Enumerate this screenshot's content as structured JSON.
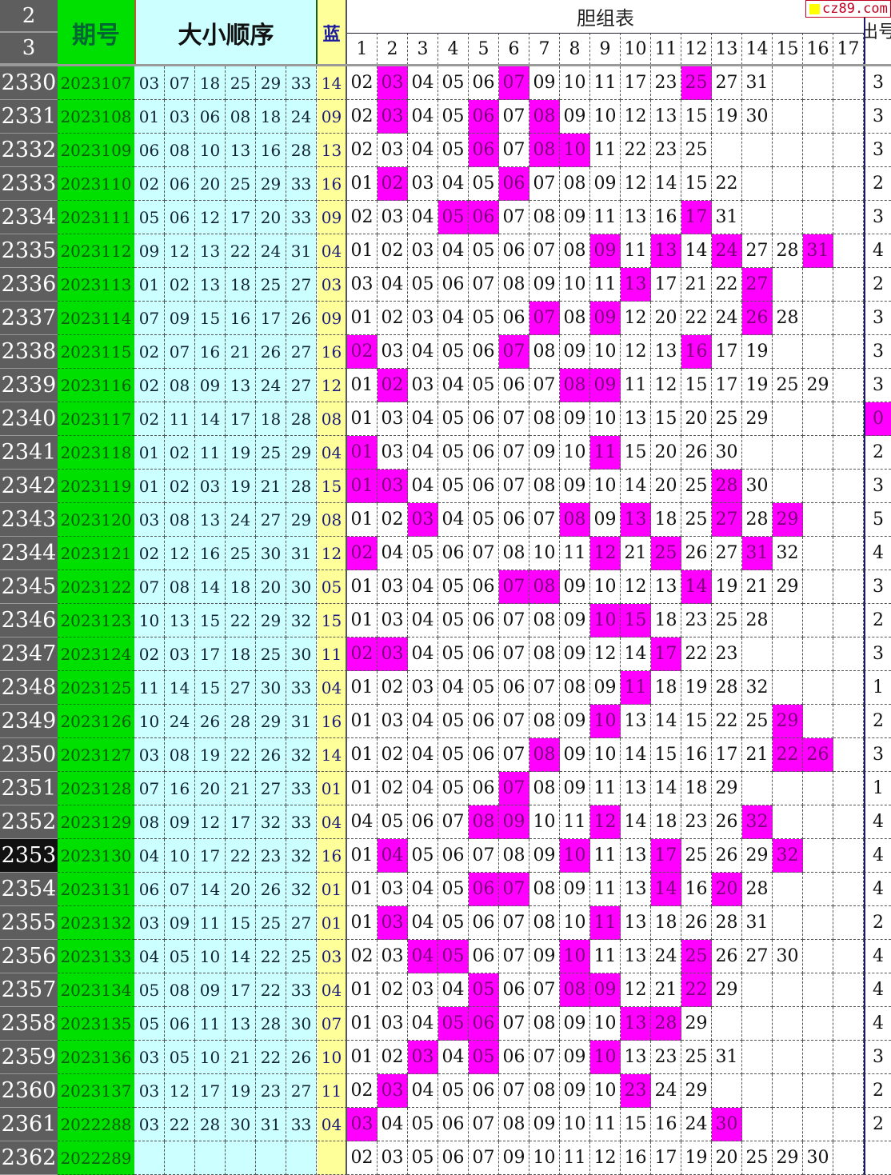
{
  "header": {
    "row_num_top": "2",
    "row_num_bottom": "3",
    "issue_label": "期号",
    "order_label": "大小顺序",
    "blue_label": "蓝",
    "group_table_label": "胆组表",
    "group_columns": [
      "1",
      "2",
      "3",
      "4",
      "5",
      "6",
      "7",
      "8",
      "9",
      "10",
      "11",
      "12",
      "13",
      "14",
      "15",
      "16",
      "17"
    ],
    "out_label": "出号"
  },
  "watermark": {
    "text": "cz89.com",
    "square_color": "#ffff00",
    "text_color": "#c00020"
  },
  "colors": {
    "hit": "#ff00ff",
    "issue_bg": "#00e000",
    "order_bg": "#ccffff",
    "blue_bg": "#ffff99",
    "row_num_bg": "#5e5e5e"
  },
  "selected_row": "2353",
  "rows": [
    {
      "n": "2330",
      "issue": "2023107",
      "reds": [
        "03",
        "07",
        "18",
        "25",
        "29",
        "33"
      ],
      "blue": "14",
      "group": [
        "02",
        "03",
        "04",
        "05",
        "06",
        "07",
        "09",
        "10",
        "11",
        "17",
        "23",
        "25",
        "27",
        "31"
      ],
      "out": "3"
    },
    {
      "n": "2331",
      "issue": "2023108",
      "reds": [
        "01",
        "03",
        "06",
        "08",
        "18",
        "24"
      ],
      "blue": "09",
      "group": [
        "02",
        "03",
        "04",
        "05",
        "06",
        "07",
        "08",
        "09",
        "10",
        "12",
        "13",
        "15",
        "19",
        "30"
      ],
      "out": "3"
    },
    {
      "n": "2332",
      "issue": "2023109",
      "reds": [
        "06",
        "08",
        "10",
        "13",
        "16",
        "28"
      ],
      "blue": "13",
      "group": [
        "02",
        "03",
        "04",
        "05",
        "06",
        "07",
        "08",
        "10",
        "11",
        "22",
        "23",
        "25"
      ],
      "out": "3"
    },
    {
      "n": "2333",
      "issue": "2023110",
      "reds": [
        "02",
        "06",
        "20",
        "25",
        "29",
        "33"
      ],
      "blue": "16",
      "group": [
        "01",
        "02",
        "03",
        "04",
        "05",
        "06",
        "07",
        "08",
        "09",
        "12",
        "14",
        "15",
        "22"
      ],
      "out": "2"
    },
    {
      "n": "2334",
      "issue": "2023111",
      "reds": [
        "05",
        "06",
        "12",
        "17",
        "20",
        "33"
      ],
      "blue": "09",
      "group": [
        "02",
        "03",
        "04",
        "05",
        "06",
        "07",
        "08",
        "09",
        "11",
        "13",
        "16",
        "17",
        "31"
      ],
      "out": "3"
    },
    {
      "n": "2335",
      "issue": "2023112",
      "reds": [
        "09",
        "12",
        "13",
        "22",
        "24",
        "31"
      ],
      "blue": "04",
      "group": [
        "01",
        "02",
        "03",
        "04",
        "05",
        "06",
        "07",
        "08",
        "09",
        "11",
        "13",
        "14",
        "24",
        "27",
        "28",
        "31"
      ],
      "out": "4"
    },
    {
      "n": "2336",
      "issue": "2023113",
      "reds": [
        "01",
        "02",
        "13",
        "18",
        "25",
        "27"
      ],
      "blue": "03",
      "group": [
        "03",
        "04",
        "05",
        "06",
        "07",
        "08",
        "09",
        "10",
        "11",
        "13",
        "17",
        "21",
        "22",
        "27"
      ],
      "out": "2"
    },
    {
      "n": "2337",
      "issue": "2023114",
      "reds": [
        "07",
        "09",
        "15",
        "16",
        "17",
        "26"
      ],
      "blue": "09",
      "group": [
        "01",
        "02",
        "03",
        "04",
        "05",
        "06",
        "07",
        "08",
        "09",
        "12",
        "20",
        "22",
        "24",
        "26",
        "28"
      ],
      "out": "3"
    },
    {
      "n": "2338",
      "issue": "2023115",
      "reds": [
        "02",
        "07",
        "16",
        "21",
        "26",
        "27"
      ],
      "blue": "16",
      "group": [
        "02",
        "03",
        "04",
        "05",
        "06",
        "07",
        "08",
        "09",
        "10",
        "12",
        "13",
        "16",
        "17",
        "19"
      ],
      "out": "3"
    },
    {
      "n": "2339",
      "issue": "2023116",
      "reds": [
        "02",
        "08",
        "09",
        "13",
        "24",
        "27"
      ],
      "blue": "12",
      "group": [
        "01",
        "02",
        "03",
        "04",
        "05",
        "06",
        "07",
        "08",
        "09",
        "11",
        "12",
        "15",
        "17",
        "19",
        "25",
        "29"
      ],
      "out": "3"
    },
    {
      "n": "2340",
      "issue": "2023117",
      "reds": [
        "02",
        "11",
        "14",
        "17",
        "18",
        "28"
      ],
      "blue": "08",
      "group": [
        "01",
        "03",
        "04",
        "05",
        "06",
        "07",
        "08",
        "09",
        "10",
        "13",
        "15",
        "20",
        "25",
        "29"
      ],
      "out": "0"
    },
    {
      "n": "2341",
      "issue": "2023118",
      "reds": [
        "01",
        "02",
        "11",
        "19",
        "25",
        "29"
      ],
      "blue": "04",
      "group": [
        "01",
        "03",
        "04",
        "05",
        "06",
        "07",
        "09",
        "10",
        "11",
        "15",
        "20",
        "26",
        "30"
      ],
      "out": "2"
    },
    {
      "n": "2342",
      "issue": "2023119",
      "reds": [
        "01",
        "02",
        "03",
        "19",
        "21",
        "28"
      ],
      "blue": "15",
      "group": [
        "01",
        "03",
        "04",
        "05",
        "06",
        "07",
        "08",
        "09",
        "10",
        "14",
        "20",
        "25",
        "28",
        "30"
      ],
      "out": "3"
    },
    {
      "n": "2343",
      "issue": "2023120",
      "reds": [
        "03",
        "08",
        "13",
        "24",
        "27",
        "29"
      ],
      "blue": "08",
      "group": [
        "01",
        "02",
        "03",
        "04",
        "05",
        "06",
        "07",
        "08",
        "09",
        "13",
        "18",
        "25",
        "27",
        "28",
        "29"
      ],
      "out": "5"
    },
    {
      "n": "2344",
      "issue": "2023121",
      "reds": [
        "02",
        "12",
        "16",
        "25",
        "30",
        "31"
      ],
      "blue": "12",
      "group": [
        "02",
        "04",
        "05",
        "06",
        "07",
        "08",
        "10",
        "11",
        "12",
        "21",
        "25",
        "26",
        "27",
        "31",
        "32"
      ],
      "out": "4"
    },
    {
      "n": "2345",
      "issue": "2023122",
      "reds": [
        "07",
        "08",
        "14",
        "18",
        "20",
        "30"
      ],
      "blue": "05",
      "group": [
        "01",
        "03",
        "04",
        "05",
        "06",
        "07",
        "08",
        "09",
        "10",
        "12",
        "13",
        "14",
        "19",
        "21",
        "29"
      ],
      "out": "3"
    },
    {
      "n": "2346",
      "issue": "2023123",
      "reds": [
        "10",
        "13",
        "15",
        "22",
        "29",
        "32"
      ],
      "blue": "15",
      "group": [
        "01",
        "03",
        "04",
        "05",
        "06",
        "07",
        "08",
        "09",
        "10",
        "15",
        "18",
        "23",
        "25",
        "28"
      ],
      "out": "2"
    },
    {
      "n": "2347",
      "issue": "2023124",
      "reds": [
        "02",
        "03",
        "17",
        "18",
        "25",
        "30"
      ],
      "blue": "11",
      "group": [
        "02",
        "03",
        "04",
        "05",
        "06",
        "07",
        "08",
        "09",
        "12",
        "14",
        "17",
        "22",
        "23"
      ],
      "out": "3"
    },
    {
      "n": "2348",
      "issue": "2023125",
      "reds": [
        "11",
        "14",
        "15",
        "27",
        "30",
        "33"
      ],
      "blue": "04",
      "group": [
        "01",
        "02",
        "03",
        "04",
        "05",
        "06",
        "07",
        "08",
        "09",
        "11",
        "18",
        "19",
        "28",
        "32"
      ],
      "out": "1"
    },
    {
      "n": "2349",
      "issue": "2023126",
      "reds": [
        "10",
        "24",
        "26",
        "28",
        "29",
        "31"
      ],
      "blue": "16",
      "group": [
        "01",
        "03",
        "04",
        "05",
        "06",
        "07",
        "08",
        "09",
        "10",
        "13",
        "14",
        "15",
        "22",
        "25",
        "29"
      ],
      "out": "2"
    },
    {
      "n": "2350",
      "issue": "2023127",
      "reds": [
        "03",
        "08",
        "19",
        "22",
        "26",
        "32"
      ],
      "blue": "14",
      "group": [
        "01",
        "02",
        "04",
        "05",
        "06",
        "07",
        "08",
        "09",
        "10",
        "14",
        "15",
        "16",
        "17",
        "21",
        "22",
        "26"
      ],
      "out": "3"
    },
    {
      "n": "2351",
      "issue": "2023128",
      "reds": [
        "07",
        "16",
        "20",
        "21",
        "27",
        "33"
      ],
      "blue": "01",
      "group": [
        "01",
        "02",
        "04",
        "05",
        "06",
        "07",
        "08",
        "09",
        "11",
        "13",
        "14",
        "18",
        "29"
      ],
      "out": "1"
    },
    {
      "n": "2352",
      "issue": "2023129",
      "reds": [
        "08",
        "09",
        "12",
        "17",
        "32",
        "33"
      ],
      "blue": "04",
      "group": [
        "04",
        "05",
        "06",
        "07",
        "08",
        "09",
        "10",
        "11",
        "12",
        "14",
        "18",
        "23",
        "26",
        "32"
      ],
      "out": "4"
    },
    {
      "n": "2353",
      "issue": "2023130",
      "reds": [
        "04",
        "10",
        "17",
        "22",
        "23",
        "32"
      ],
      "blue": "16",
      "group": [
        "01",
        "04",
        "05",
        "06",
        "07",
        "08",
        "09",
        "10",
        "11",
        "13",
        "17",
        "25",
        "26",
        "29",
        "32"
      ],
      "out": "4"
    },
    {
      "n": "2354",
      "issue": "2023131",
      "reds": [
        "06",
        "07",
        "14",
        "20",
        "26",
        "32"
      ],
      "blue": "01",
      "group": [
        "01",
        "03",
        "04",
        "05",
        "06",
        "07",
        "08",
        "09",
        "11",
        "13",
        "14",
        "16",
        "20",
        "28"
      ],
      "out": "4"
    },
    {
      "n": "2355",
      "issue": "2023132",
      "reds": [
        "03",
        "09",
        "11",
        "15",
        "25",
        "27"
      ],
      "blue": "01",
      "group": [
        "01",
        "03",
        "04",
        "05",
        "06",
        "07",
        "08",
        "10",
        "11",
        "13",
        "18",
        "26",
        "28",
        "31"
      ],
      "out": "2"
    },
    {
      "n": "2356",
      "issue": "2023133",
      "reds": [
        "04",
        "05",
        "10",
        "14",
        "22",
        "25"
      ],
      "blue": "03",
      "group": [
        "02",
        "03",
        "04",
        "05",
        "06",
        "07",
        "09",
        "10",
        "11",
        "13",
        "24",
        "25",
        "26",
        "27",
        "30"
      ],
      "out": "4"
    },
    {
      "n": "2357",
      "issue": "2023134",
      "reds": [
        "05",
        "08",
        "09",
        "17",
        "22",
        "33"
      ],
      "blue": "04",
      "group": [
        "01",
        "02",
        "03",
        "04",
        "05",
        "06",
        "07",
        "08",
        "09",
        "12",
        "21",
        "22",
        "29"
      ],
      "out": "4"
    },
    {
      "n": "2358",
      "issue": "2023135",
      "reds": [
        "05",
        "06",
        "11",
        "13",
        "28",
        "30"
      ],
      "blue": "07",
      "group": [
        "01",
        "03",
        "04",
        "05",
        "06",
        "07",
        "08",
        "09",
        "10",
        "13",
        "28",
        "29"
      ],
      "out": "4"
    },
    {
      "n": "2359",
      "issue": "2023136",
      "reds": [
        "03",
        "05",
        "10",
        "21",
        "22",
        "26"
      ],
      "blue": "10",
      "group": [
        "01",
        "02",
        "03",
        "04",
        "05",
        "06",
        "07",
        "09",
        "10",
        "13",
        "23",
        "25",
        "31"
      ],
      "out": "3"
    },
    {
      "n": "2360",
      "issue": "2023137",
      "reds": [
        "03",
        "12",
        "17",
        "19",
        "23",
        "27"
      ],
      "blue": "11",
      "group": [
        "02",
        "03",
        "04",
        "05",
        "06",
        "07",
        "08",
        "09",
        "10",
        "23",
        "24",
        "29"
      ],
      "out": "2"
    },
    {
      "n": "2361",
      "issue": "2022288",
      "reds": [
        "03",
        "22",
        "28",
        "30",
        "31",
        "33"
      ],
      "blue": "04",
      "group": [
        "03",
        "04",
        "05",
        "06",
        "07",
        "08",
        "09",
        "10",
        "11",
        "15",
        "16",
        "24",
        "30"
      ],
      "out": "2"
    },
    {
      "n": "2362",
      "issue": "2022289",
      "reds": [
        "",
        "",
        "",
        "",
        "",
        ""
      ],
      "blue": "",
      "group": [
        "02",
        "03",
        "05",
        "06",
        "07",
        "09",
        "10",
        "11",
        "12",
        "16",
        "17",
        "19",
        "20",
        "25",
        "29",
        "30"
      ],
      "out": ""
    }
  ]
}
